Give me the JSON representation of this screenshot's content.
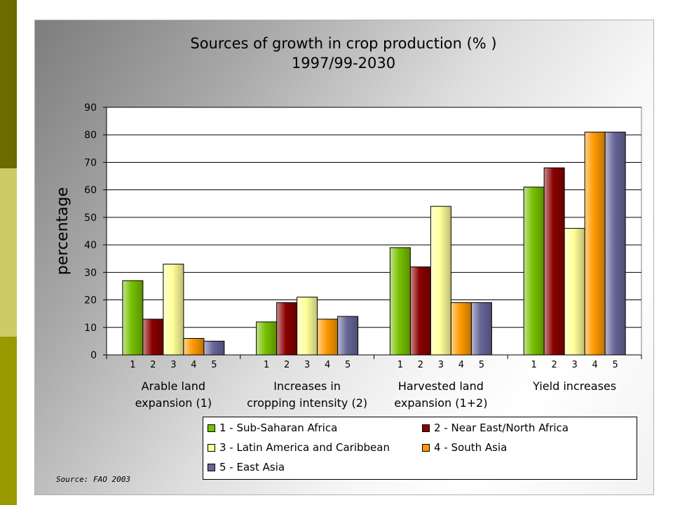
{
  "chart_data": {
    "type": "bar",
    "title": "Sources of growth in crop production (% )",
    "subtitle": "1997/99-2030",
    "ylabel": "percentage",
    "xlabel": "",
    "ylim": [
      0,
      90
    ],
    "yticks": [
      "0",
      "10",
      "20",
      "30",
      "40",
      "50",
      "60",
      "70",
      "80",
      "90"
    ],
    "categories": [
      {
        "line1": "Arable land",
        "line2": "expansion (1)"
      },
      {
        "line1": "Increases in",
        "line2": "cropping intensity (2)"
      },
      {
        "line1": "Harvested land",
        "line2": "expansion (1+2)"
      },
      {
        "line1": "Yield increases",
        "line2": ""
      }
    ],
    "bar_numbers": [
      "1",
      "2",
      "3",
      "4",
      "5"
    ],
    "series": [
      {
        "name": "1 - Sub-Saharan Africa",
        "values": [
          27,
          12,
          39,
          61
        ],
        "color": "#77c000"
      },
      {
        "name": "2 - Near East/North Africa",
        "values": [
          13,
          19,
          32,
          68
        ],
        "color": "#8b0000"
      },
      {
        "name": "3 - Latin America and Caribbean",
        "values": [
          33,
          21,
          54,
          46
        ],
        "color": "#ffff99"
      },
      {
        "name": "4 - South Asia",
        "values": [
          6,
          13,
          19,
          81
        ],
        "color": "#ff9900"
      },
      {
        "name": "5 - East Asia",
        "values": [
          5,
          14,
          19,
          81
        ],
        "color": "#666699"
      }
    ],
    "grid": true,
    "legend_position": "bottom"
  },
  "source": "Source: FAO 2003",
  "colors": {
    "stripe_top": "#6b6b00",
    "stripe_mid": "#cccc66",
    "stripe_bottom": "#999900"
  }
}
